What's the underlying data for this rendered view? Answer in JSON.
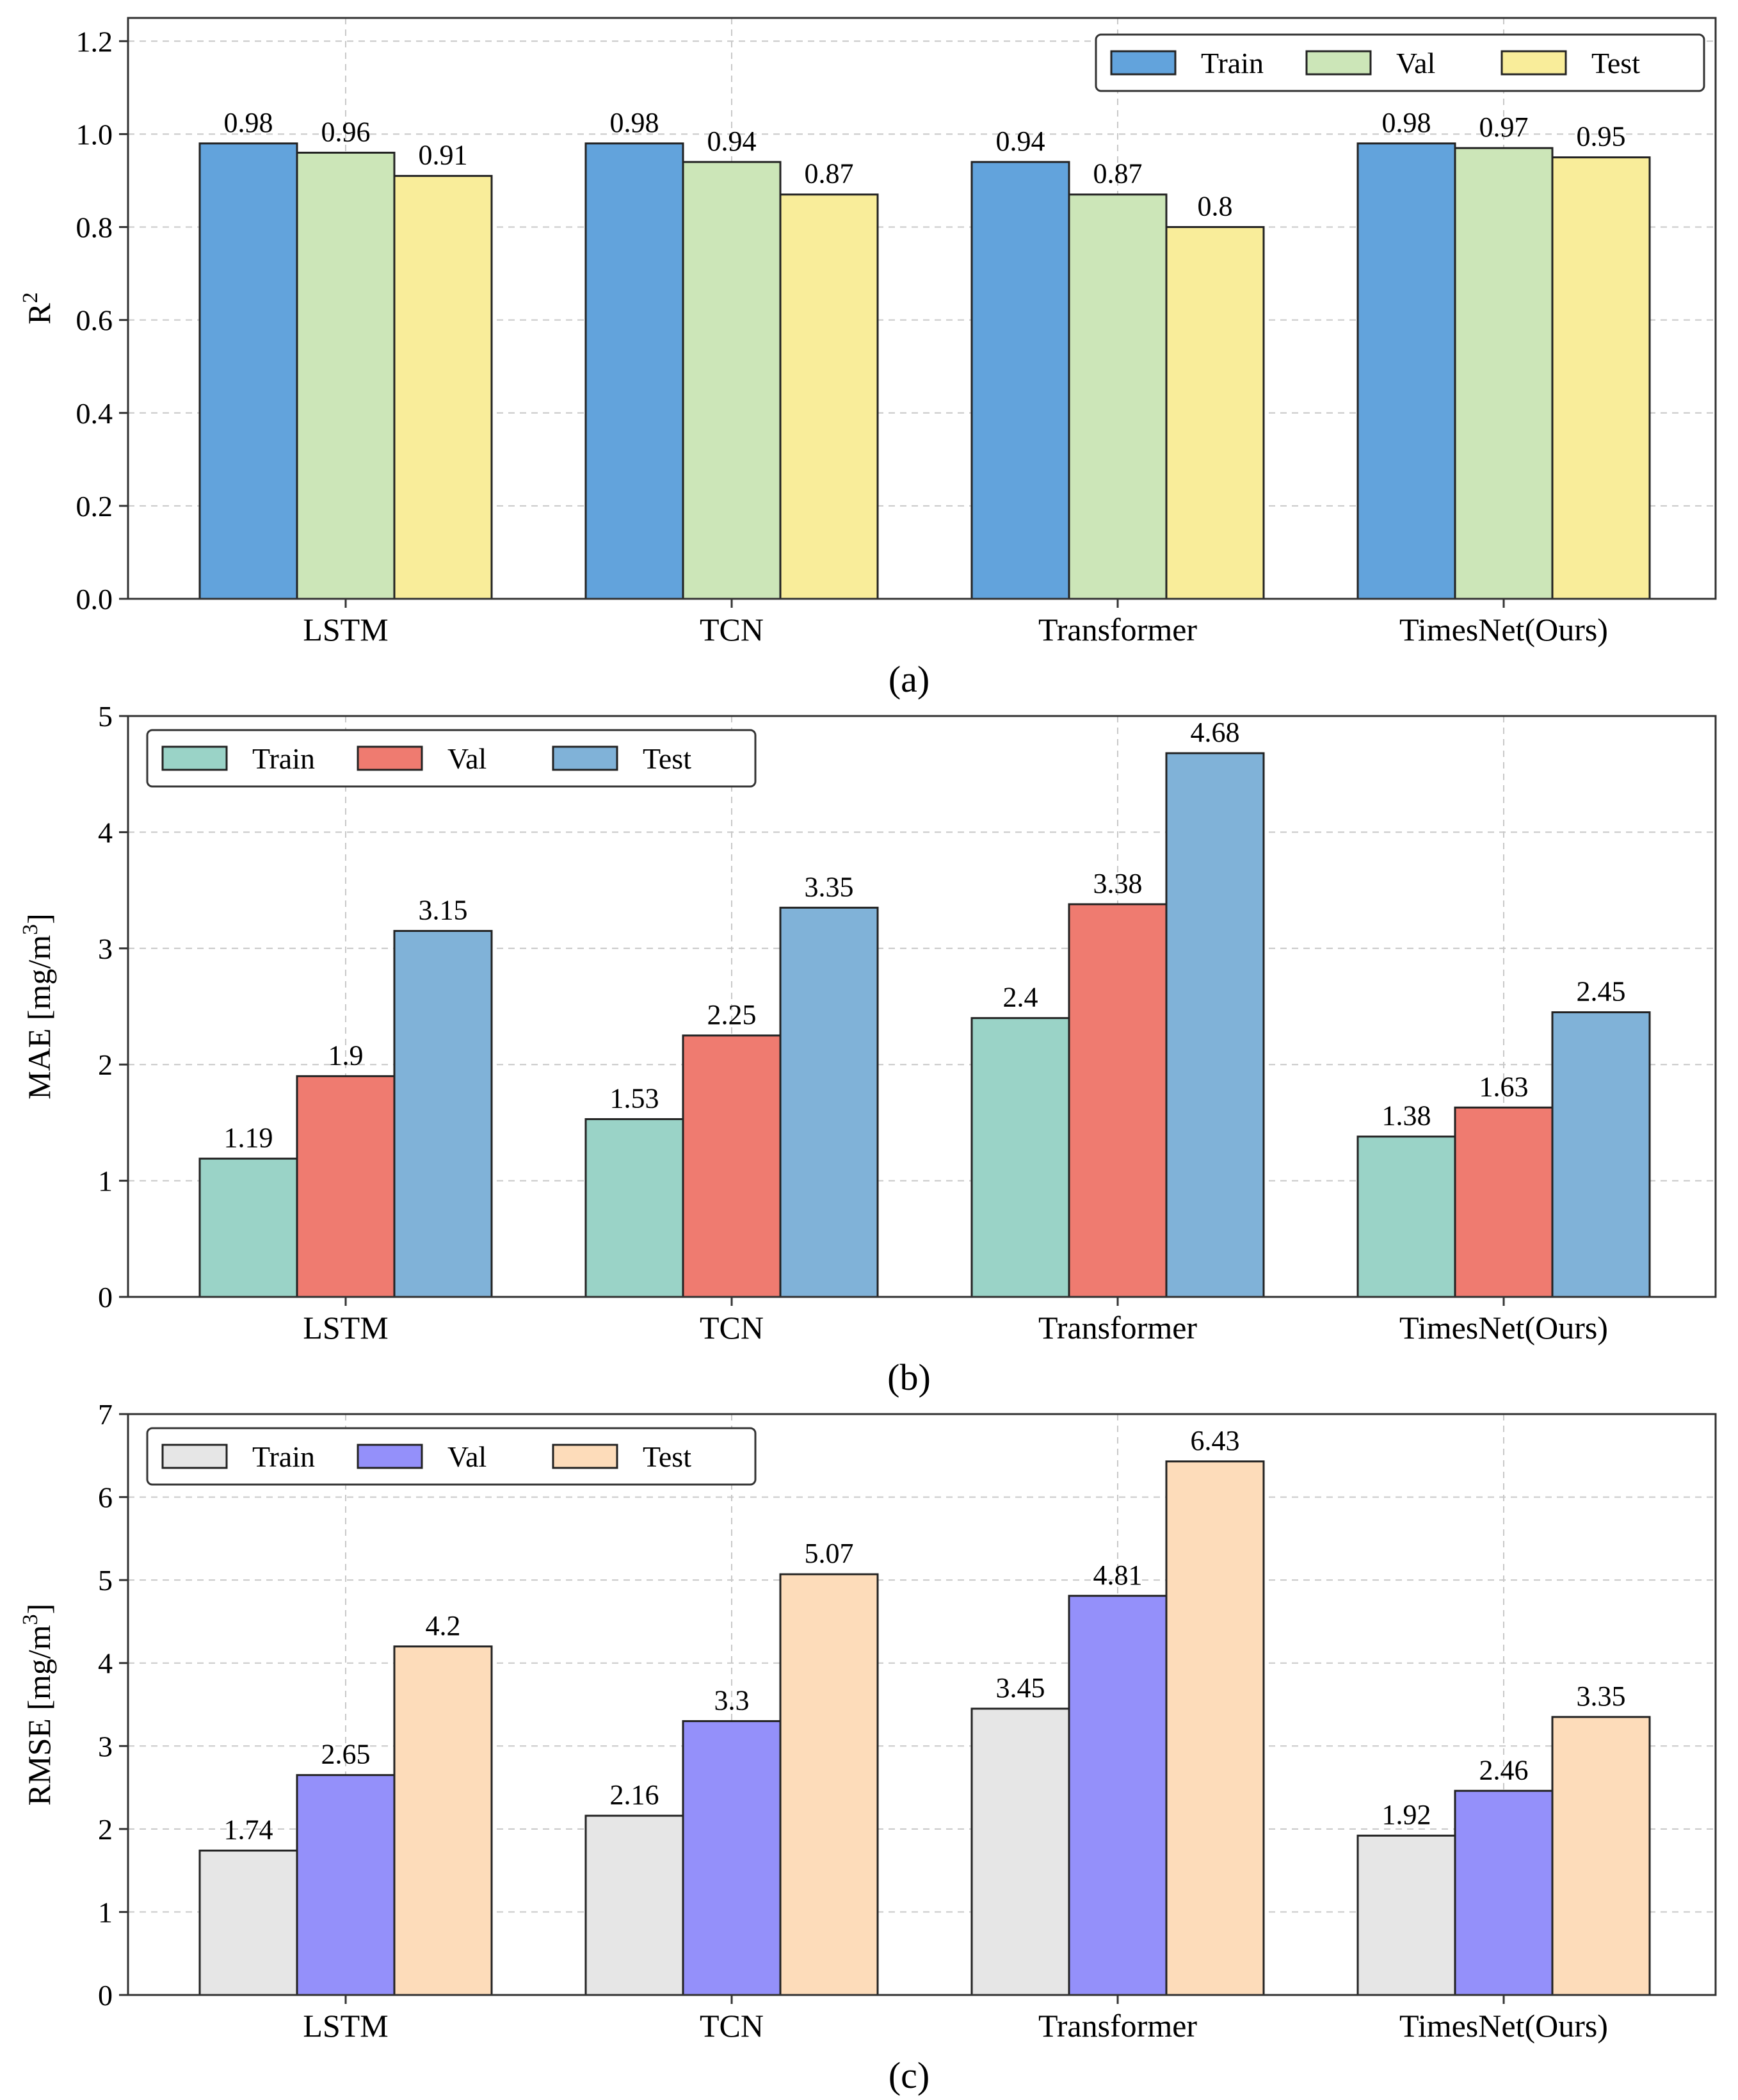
{
  "chart_data": [
    {
      "type": "bar",
      "caption": "(a)",
      "ylabel": "R",
      "ylabel_sup": "2",
      "ylim": [
        0,
        1.25
      ],
      "yticks": [
        0.0,
        0.2,
        0.4,
        0.6,
        0.8,
        1.0,
        1.2
      ],
      "ytick_labels": [
        "0.0",
        "0.2",
        "0.4",
        "0.6",
        "0.8",
        "1.0",
        "1.2"
      ],
      "categories": [
        "LSTM",
        "TCN",
        "Transformer",
        "TimesNet(Ours)"
      ],
      "legend_position": "top-right",
      "series": [
        {
          "name": "Train",
          "color": "#62a3dc",
          "values": [
            0.98,
            0.98,
            0.94,
            0.98
          ],
          "labels": [
            "0.98",
            "0.98",
            "0.94",
            "0.98"
          ]
        },
        {
          "name": "Val",
          "color": "#cce6b8",
          "values": [
            0.96,
            0.94,
            0.87,
            0.97
          ],
          "labels": [
            "0.96",
            "0.94",
            "0.87",
            "0.97"
          ]
        },
        {
          "name": "Test",
          "color": "#f9ed9a",
          "values": [
            0.91,
            0.87,
            0.8,
            0.95
          ],
          "labels": [
            "0.91",
            "0.87",
            "0.8",
            "0.95"
          ]
        }
      ],
      "grid": true
    },
    {
      "type": "bar",
      "caption": "(b)",
      "ylabel": "MAE [mg/m",
      "ylabel_sup": "3",
      "ylabel_end": "]",
      "ylim": [
        0,
        5
      ],
      "yticks": [
        0,
        1,
        2,
        3,
        4,
        5
      ],
      "ytick_labels": [
        "0",
        "1",
        "2",
        "3",
        "4",
        "5"
      ],
      "categories": [
        "LSTM",
        "TCN",
        "Transformer",
        "TimesNet(Ours)"
      ],
      "legend_position": "top-left",
      "series": [
        {
          "name": "Train",
          "color": "#9ad3c7",
          "values": [
            1.19,
            1.53,
            2.4,
            1.38
          ],
          "labels": [
            "1.19",
            "1.53",
            "2.4",
            "1.38"
          ]
        },
        {
          "name": "Val",
          "color": "#ef7b70",
          "values": [
            1.9,
            2.25,
            3.38,
            1.63
          ],
          "labels": [
            "1.9",
            "2.25",
            "3.38",
            "1.63"
          ]
        },
        {
          "name": "Test",
          "color": "#80b2d8",
          "values": [
            3.15,
            3.35,
            4.68,
            2.45
          ],
          "labels": [
            "3.15",
            "3.35",
            "4.68",
            "2.45"
          ]
        }
      ],
      "grid": true
    },
    {
      "type": "bar",
      "caption": "(c)",
      "ylabel": "RMSE [mg/m",
      "ylabel_sup": "3",
      "ylabel_end": "]",
      "ylim": [
        0,
        7
      ],
      "yticks": [
        0,
        1,
        2,
        3,
        4,
        5,
        6,
        7
      ],
      "ytick_labels": [
        "0",
        "1",
        "2",
        "3",
        "4",
        "5",
        "6",
        "7"
      ],
      "categories": [
        "LSTM",
        "TCN",
        "Transformer",
        "TimesNet(Ours)"
      ],
      "legend_position": "top-left",
      "series": [
        {
          "name": "Train",
          "color": "#e6e6e6",
          "values": [
            1.74,
            2.16,
            3.45,
            1.92
          ],
          "labels": [
            "1.74",
            "2.16",
            "3.45",
            "1.92"
          ]
        },
        {
          "name": "Val",
          "color": "#9490fa",
          "values": [
            2.65,
            3.3,
            4.81,
            2.46
          ],
          "labels": [
            "2.65",
            "3.3",
            "4.81",
            "2.46"
          ]
        },
        {
          "name": "Test",
          "color": "#fddcba",
          "values": [
            4.2,
            5.07,
            6.43,
            3.35
          ],
          "labels": [
            "4.2",
            "5.07",
            "6.43",
            "3.35"
          ]
        }
      ],
      "grid": true
    }
  ]
}
